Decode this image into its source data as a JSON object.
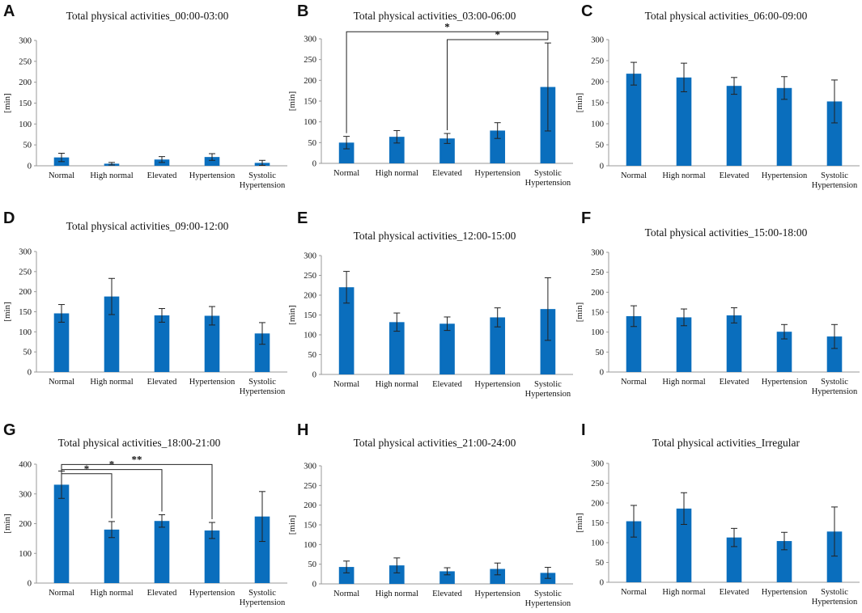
{
  "colors": {
    "bar": "#0a6ebd",
    "axis": "#999999",
    "error": "#222222",
    "text": "#111111"
  },
  "chart_data": [
    {
      "panel": "A",
      "type": "bar",
      "title": "Total physical activities_00:00-03:00",
      "ylabel": "[min]",
      "ylim": [
        0,
        300
      ],
      "yticks": [
        0,
        50,
        100,
        150,
        200,
        250,
        300
      ],
      "categories": [
        "Normal",
        "High normal",
        "Elevated",
        "Hypertension",
        "Systolic Hypertension"
      ],
      "values": [
        20,
        5,
        15,
        21,
        7
      ],
      "errors": [
        10,
        3,
        7,
        8,
        6
      ],
      "significance": []
    },
    {
      "panel": "B",
      "type": "bar",
      "title": "Total physical activities_03:00-06:00",
      "ylabel": "[min]",
      "ylim": [
        0,
        300
      ],
      "yticks": [
        0,
        50,
        100,
        150,
        200,
        250,
        300
      ],
      "categories": [
        "Normal",
        "High normal",
        "Elevated",
        "Hypertension",
        "Systolic Hypertension"
      ],
      "values": [
        50,
        64,
        60,
        79,
        184
      ],
      "errors": [
        15,
        15,
        12,
        19,
        106
      ],
      "significance": [
        {
          "from": 0,
          "to": 4,
          "label": "*",
          "y": 317
        },
        {
          "from": 2,
          "to": 4,
          "label": "*",
          "y": 298
        }
      ]
    },
    {
      "panel": "C",
      "type": "bar",
      "title": "Total physical activities_06:00-09:00",
      "ylabel": "[min]",
      "ylim": [
        0,
        300
      ],
      "yticks": [
        0,
        50,
        100,
        150,
        200,
        250,
        300
      ],
      "categories": [
        "Normal",
        "High normal",
        "Elevated",
        "Hypertension",
        "Systolic Hypertension"
      ],
      "values": [
        219,
        210,
        190,
        185,
        153
      ],
      "errors": [
        27,
        34,
        20,
        27,
        51
      ],
      "significance": []
    },
    {
      "panel": "D",
      "type": "bar",
      "title": "Total physical activities_09:00-12:00",
      "ylabel": "[min]",
      "ylim": [
        0,
        300
      ],
      "yticks": [
        0,
        50,
        100,
        150,
        200,
        250,
        300
      ],
      "categories": [
        "Normal",
        "High normal",
        "Elevated",
        "Hypertension",
        "Systolic Hypertension"
      ],
      "values": [
        146,
        188,
        141,
        140,
        96
      ],
      "errors": [
        22,
        45,
        17,
        23,
        27
      ],
      "significance": []
    },
    {
      "panel": "E",
      "type": "bar",
      "title": "Total physical activities_12:00-15:00",
      "ylabel": "[min]",
      "ylim": [
        0,
        300
      ],
      "yticks": [
        0,
        50,
        100,
        150,
        200,
        250,
        300
      ],
      "categories": [
        "Normal",
        "High normal",
        "Elevated",
        "Hypertension",
        "Systolic Hypertension"
      ],
      "values": [
        220,
        132,
        128,
        144,
        165
      ],
      "errors": [
        40,
        23,
        17,
        24,
        79
      ],
      "significance": []
    },
    {
      "panel": "F",
      "type": "bar",
      "title": "Total physical activities_15:00-18:00",
      "ylabel": "[min]",
      "ylim": [
        0,
        300
      ],
      "yticks": [
        0,
        50,
        100,
        150,
        200,
        250,
        300
      ],
      "categories": [
        "Normal",
        "High normal",
        "Elevated",
        "Hypertension",
        "Systolic Hypertension"
      ],
      "values": [
        140,
        137,
        142,
        101,
        89
      ],
      "errors": [
        26,
        21,
        19,
        18,
        30
      ],
      "significance": []
    },
    {
      "panel": "G",
      "type": "bar",
      "title": "Total physical activities_18:00-21:00",
      "ylabel": "[min]",
      "ylim": [
        0,
        400
      ],
      "yticks": [
        0,
        100,
        200,
        300,
        400
      ],
      "categories": [
        "Normal",
        "High normal",
        "Elevated",
        "Hypertension",
        "Systolic Hypertension"
      ],
      "values": [
        331,
        180,
        209,
        177,
        224
      ],
      "errors": [
        46,
        27,
        21,
        27,
        84
      ],
      "significance": [
        {
          "from": 0,
          "to": 1,
          "label": "*",
          "y": 368
        },
        {
          "from": 0,
          "to": 2,
          "label": "*",
          "y": 382
        },
        {
          "from": 0,
          "to": 3,
          "label": "**",
          "y": 399
        }
      ]
    },
    {
      "panel": "H",
      "type": "bar",
      "title": "Total physical activities_21:00-24:00",
      "ylabel": "[min]",
      "ylim": [
        0,
        300
      ],
      "yticks": [
        0,
        50,
        100,
        150,
        200,
        250,
        300
      ],
      "categories": [
        "Normal",
        "High normal",
        "Elevated",
        "Hypertension",
        "Systolic Hypertension"
      ],
      "values": [
        43,
        47,
        32,
        38,
        28
      ],
      "errors": [
        15,
        19,
        9,
        15,
        14
      ],
      "significance": []
    },
    {
      "panel": "I",
      "type": "bar",
      "title": "Total physical activities_Irregular",
      "ylabel": "[min]",
      "ylim": [
        0,
        300
      ],
      "yticks": [
        0,
        50,
        100,
        150,
        200,
        250,
        300
      ],
      "categories": [
        "Normal",
        "High normal",
        "Elevated",
        "Hypertension",
        "Systolic Hypertension"
      ],
      "values": [
        154,
        186,
        113,
        104,
        128
      ],
      "errors": [
        40,
        40,
        23,
        22,
        62
      ],
      "significance": []
    }
  ]
}
